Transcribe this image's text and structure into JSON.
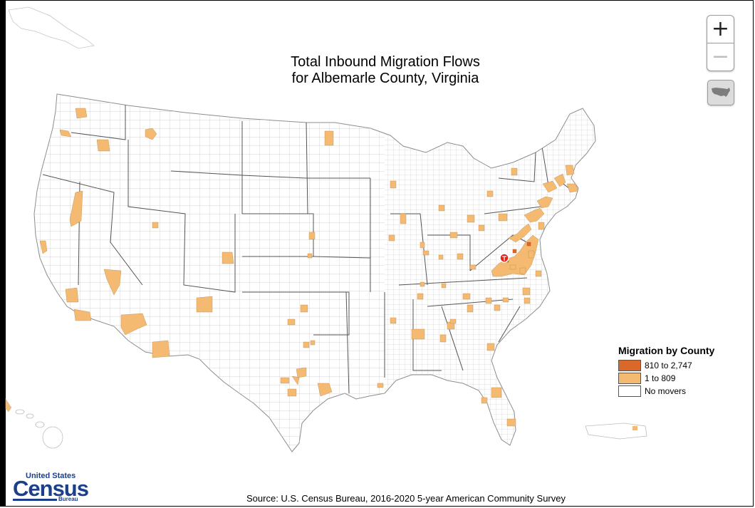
{
  "title": {
    "line1": "Total Inbound Migration Flows",
    "line2": "for Albemarle County, Virginia"
  },
  "controls": {
    "zoom_in": "+",
    "zoom_out": "−",
    "home_icon": "us-map-icon"
  },
  "legend": {
    "title": "Migration by County",
    "items": [
      {
        "label": "810 to 2,747",
        "color": "#d9692b"
      },
      {
        "label": "1 to 809",
        "color": "#f4ba72"
      },
      {
        "label": "No movers",
        "color": "#ffffff"
      }
    ]
  },
  "source": "Source: U.S. Census Bureau, 2016-2020 5-year American Community Survey",
  "logo": {
    "top": "United States",
    "main": "Census",
    "bottom": "Bureau"
  },
  "colors": {
    "high": "#d9692b",
    "low": "#f4ba72",
    "none": "#ffffff",
    "marker": "#e8201b"
  }
}
